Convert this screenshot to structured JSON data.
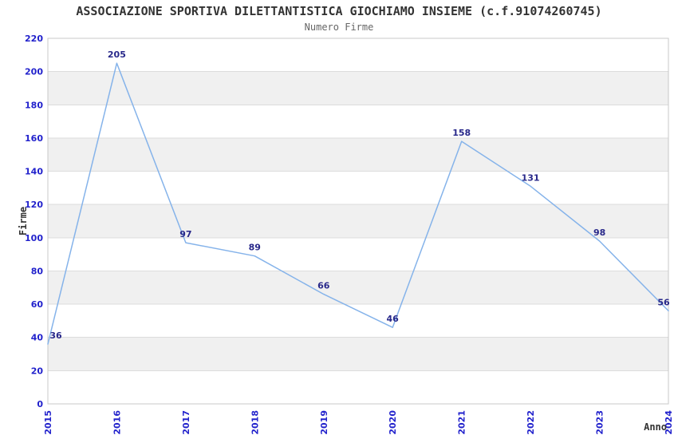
{
  "chart_data": {
    "type": "line",
    "title": "ASSOCIAZIONE SPORTIVA DILETTANTISTICA GIOCHIAMO INSIEME (c.f.91074260745)",
    "subtitle": "Numero Firme",
    "xlabel": "Anno",
    "ylabel": "Firme",
    "categories": [
      "2015",
      "2016",
      "2017",
      "2018",
      "2019",
      "2020",
      "2021",
      "2022",
      "2023",
      "2024"
    ],
    "values": [
      36,
      205,
      97,
      89,
      66,
      46,
      158,
      131,
      98,
      56
    ],
    "ylim": [
      0,
      220
    ],
    "ytick_step": 20,
    "grid": true,
    "band_fill": "alternating",
    "legend": "none",
    "colors": {
      "line": "#85B3EA",
      "point_label": "#28288A",
      "tick_label": "#2222CC",
      "band": "#F0F0F0",
      "gridline": "#DCDCDC",
      "border": "#C8C8C8",
      "title": "#333333",
      "subtitle": "#666666",
      "axis_label": "#333333",
      "background": "#FFFFFF"
    }
  }
}
